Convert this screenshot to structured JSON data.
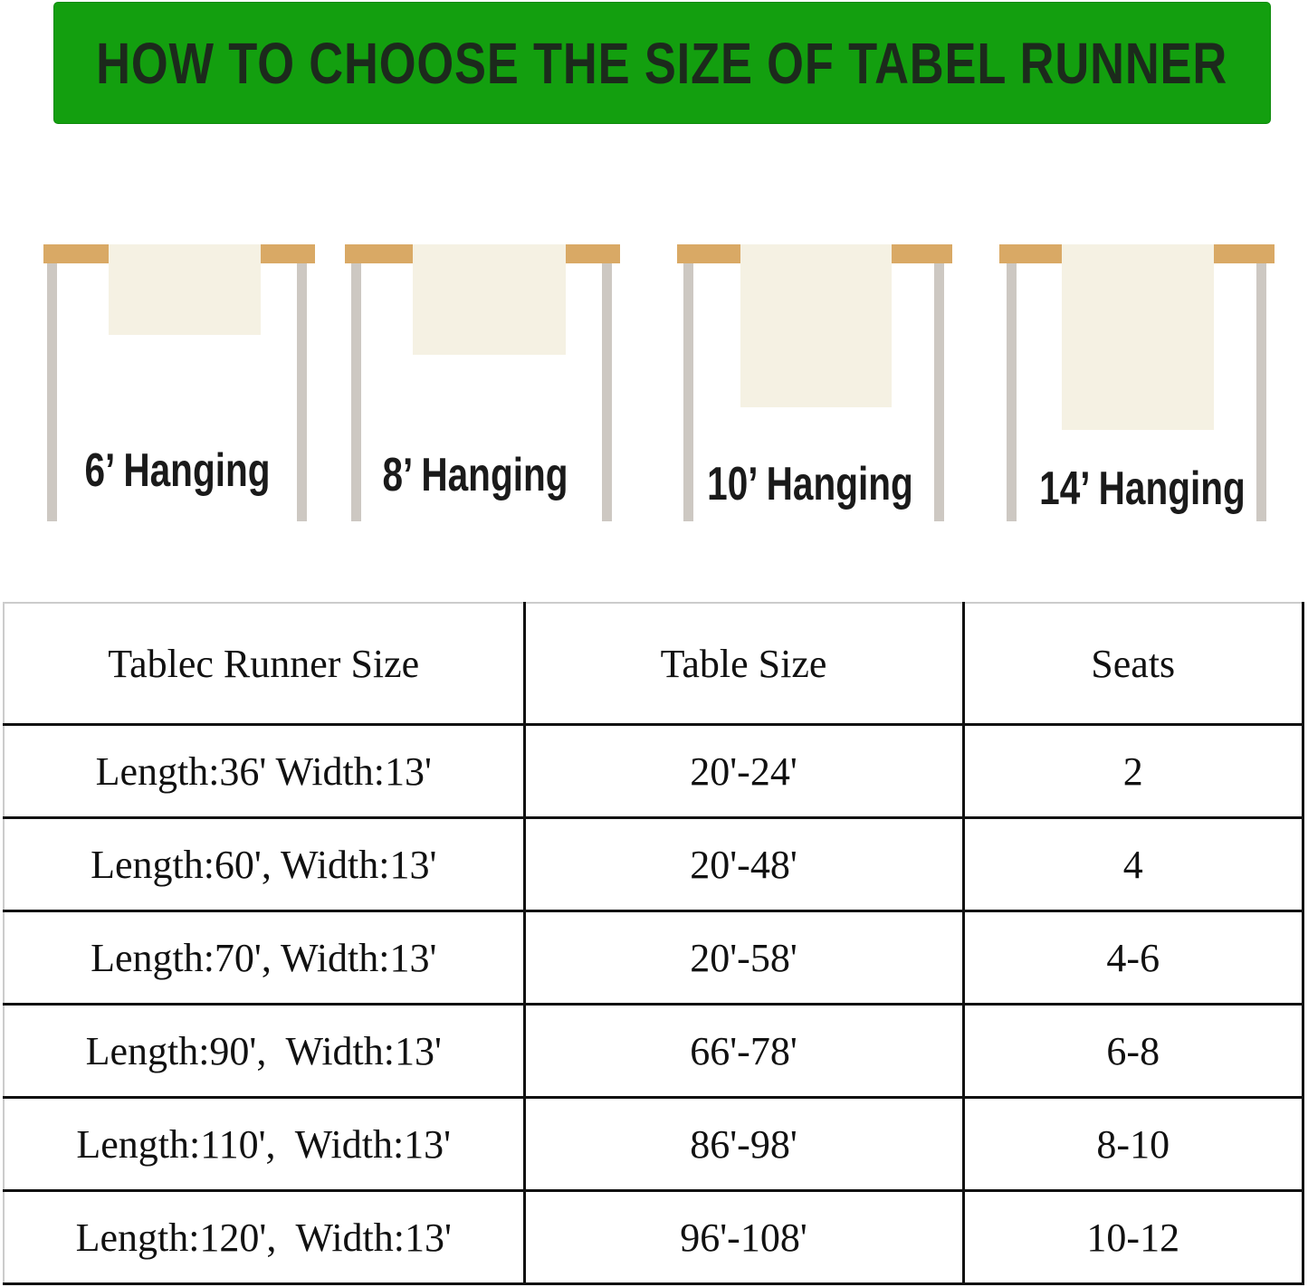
{
  "title": "HOW TO CHOOSE THE SIZE OF TABEL RUNNER",
  "colors": {
    "banner": "#139f0f",
    "table_top": "#d9a965",
    "legs": "#cdc8c2",
    "runner": "#f5f1e3"
  },
  "diagrams": [
    {
      "label": "6’ Hanging"
    },
    {
      "label": "8’ Hanging"
    },
    {
      "label": "10’ Hanging"
    },
    {
      "label": "14’ Hanging"
    }
  ],
  "table": {
    "headers": [
      "Tablec Runner Size",
      "Table Size",
      "Seats"
    ],
    "rows": [
      [
        "Length:36' Width:13'",
        "20'-24'",
        "2"
      ],
      [
        "Length:60', Width:13'",
        "20'-48'",
        "4"
      ],
      [
        "Length:70', Width:13'",
        "20'-58'",
        "4-6"
      ],
      [
        "Length:90',  Width:13'",
        "66'-78'",
        "6-8"
      ],
      [
        "Length:110',  Width:13'",
        "86'-98'",
        "8-10"
      ],
      [
        "Length:120',  Width:13'",
        "96'-108'",
        "10-12"
      ]
    ]
  }
}
